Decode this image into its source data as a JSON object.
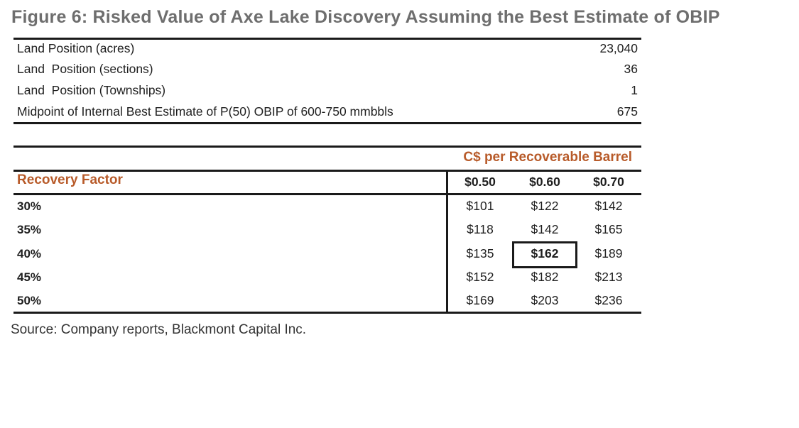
{
  "title": "Figure 6: Risked Value of Axe Lake Discovery Assuming the Best Estimate of OBIP",
  "land_table": [
    {
      "label": "Land Position (acres)",
      "value": "23,040"
    },
    {
      "label": "Land  Position (sections)",
      "value": "36"
    },
    {
      "label": "Land  Position (Townships)",
      "value": "1"
    },
    {
      "label": "Midpoint of Internal Best Estimate of P(50) OBIP of 600-750 mmbbls",
      "value": "675"
    }
  ],
  "value_table": {
    "group_header": "C$ per Recoverable Barrel",
    "row_header": "Recovery Factor",
    "columns": [
      "$0.50",
      "$0.60",
      "$0.70"
    ],
    "rows": [
      {
        "factor": "30%",
        "values": [
          "$101",
          "$122",
          "$142"
        ]
      },
      {
        "factor": "35%",
        "values": [
          "$118",
          "$142",
          "$165"
        ]
      },
      {
        "factor": "40%",
        "values": [
          "$135",
          "$162",
          "$189"
        ]
      },
      {
        "factor": "45%",
        "values": [
          "$152",
          "$182",
          "$213"
        ]
      },
      {
        "factor": "50%",
        "values": [
          "$169",
          "$203",
          "$236"
        ]
      }
    ],
    "highlight": {
      "row": 2,
      "col": 1
    }
  },
  "source": "Source: Company reports, Blackmont Capital Inc.",
  "colors": {
    "accent": "#b85b2a",
    "title": "#6e6e6e",
    "rule": "#1a1a1a"
  }
}
